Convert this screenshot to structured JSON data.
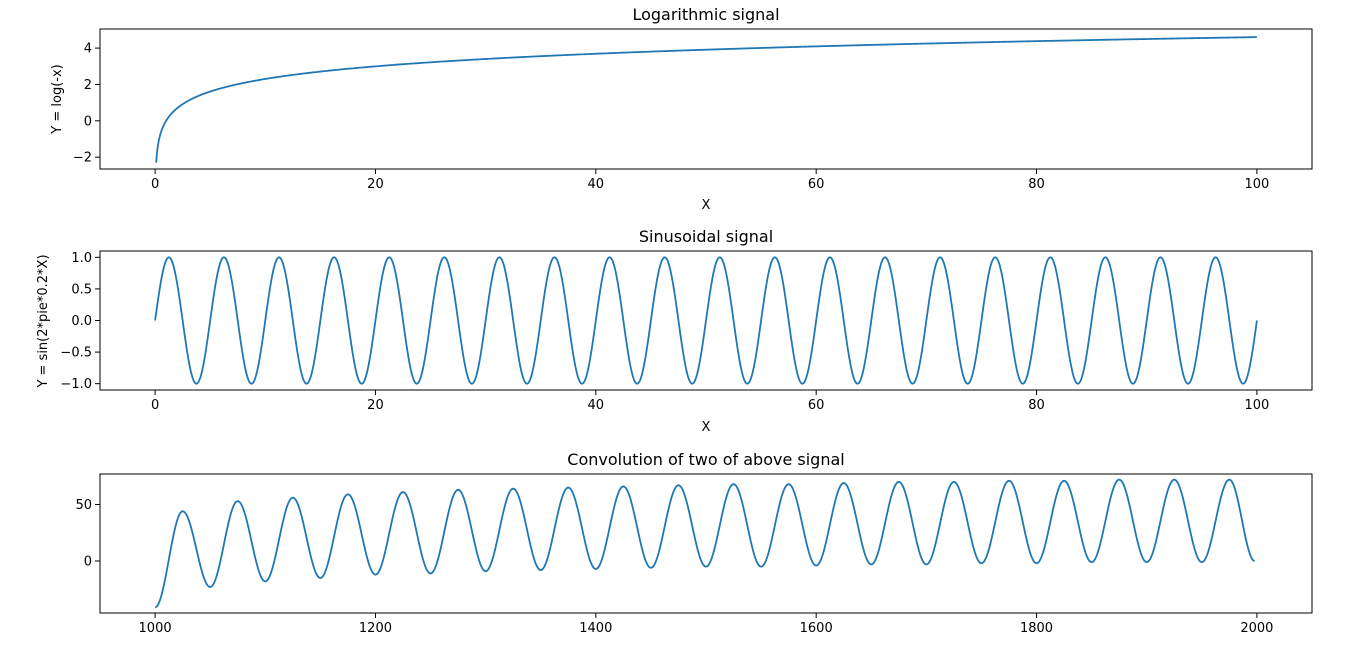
{
  "chart_data": [
    {
      "type": "line",
      "title": "Logarithmic signal",
      "xlabel": "X",
      "ylabel": "Y = log(-x)",
      "xlim": [
        -5,
        105
      ],
      "ylim": [
        -2.65,
        5.05
      ],
      "xticks": [
        0,
        20,
        40,
        60,
        80,
        100
      ],
      "xtick_labels": [
        "0",
        "20",
        "40",
        "60",
        "80",
        "100"
      ],
      "yticks": [
        -2,
        0,
        2,
        4
      ],
      "ytick_labels": [
        "−2",
        "0",
        "2",
        "4"
      ],
      "series": [
        {
          "color": "#1f77b4",
          "x": [
            0.1,
            0.2,
            0.3,
            0.5,
            0.75,
            1,
            1.5,
            2,
            3,
            4,
            5,
            6,
            8,
            10,
            12,
            15,
            20,
            25,
            30,
            35,
            40,
            45,
            50,
            55,
            60,
            65,
            70,
            75,
            80,
            85,
            90,
            95,
            100
          ],
          "y": [
            -2.303,
            -1.609,
            -1.204,
            -0.693,
            -0.288,
            0,
            0.405,
            0.693,
            1.099,
            1.386,
            1.609,
            1.792,
            2.079,
            2.303,
            2.485,
            2.708,
            2.996,
            3.219,
            3.401,
            3.555,
            3.689,
            3.807,
            3.912,
            4.007,
            4.094,
            4.174,
            4.248,
            4.317,
            4.382,
            4.443,
            4.5,
            4.554,
            4.605
          ]
        }
      ]
    },
    {
      "type": "line",
      "title": "Sinusoidal signal",
      "xlabel": "X",
      "ylabel": "Y = sin(2*pie*0.2*X)",
      "xlim": [
        -5,
        105
      ],
      "ylim": [
        -1.1,
        1.1
      ],
      "xticks": [
        0,
        20,
        40,
        60,
        80,
        100
      ],
      "xtick_labels": [
        "0",
        "20",
        "40",
        "60",
        "80",
        "100"
      ],
      "yticks": [
        -1.0,
        -0.5,
        0.0,
        0.5,
        1.0
      ],
      "ytick_labels": [
        "−1.0",
        "−0.5",
        "0.0",
        "0.5",
        "1.0"
      ],
      "series": [
        {
          "color": "#1f77b4",
          "function": "sin",
          "amplitude": 1,
          "frequency": 0.2,
          "x_range": [
            0,
            100
          ]
        }
      ]
    },
    {
      "type": "line",
      "title": "Convolution of two of above signal",
      "xlabel": "",
      "ylabel": "",
      "xlim": [
        950,
        2050
      ],
      "ylim": [
        -46,
        77
      ],
      "xticks": [
        1000,
        1200,
        1400,
        1600,
        1800,
        2000
      ],
      "xtick_labels": [
        "1000",
        "1200",
        "1400",
        "1600",
        "1800",
        "2000"
      ],
      "yticks": [
        0,
        50
      ],
      "ytick_labels": [
        "0",
        "50"
      ],
      "series": [
        {
          "color": "#1f77b4",
          "description_period": 50,
          "x_range": [
            1000,
            1998
          ],
          "start_value": -41,
          "end_value": 0,
          "peaks": [
            {
              "x": 1025,
              "y": 44
            },
            {
              "x": 1075,
              "y": 53
            },
            {
              "x": 1125,
              "y": 56
            },
            {
              "x": 1175,
              "y": 59
            },
            {
              "x": 1225,
              "y": 61
            },
            {
              "x": 1275,
              "y": 63
            },
            {
              "x": 1325,
              "y": 64
            },
            {
              "x": 1375,
              "y": 65
            },
            {
              "x": 1425,
              "y": 66
            },
            {
              "x": 1475,
              "y": 67
            },
            {
              "x": 1525,
              "y": 68
            },
            {
              "x": 1575,
              "y": 68
            },
            {
              "x": 1625,
              "y": 69
            },
            {
              "x": 1675,
              "y": 70
            },
            {
              "x": 1725,
              "y": 70
            },
            {
              "x": 1775,
              "y": 71
            },
            {
              "x": 1825,
              "y": 71
            },
            {
              "x": 1875,
              "y": 72
            },
            {
              "x": 1925,
              "y": 72
            },
            {
              "x": 1975,
              "y": 72
            }
          ],
          "troughs": [
            {
              "x": 1050,
              "y": -23
            },
            {
              "x": 1100,
              "y": -18
            },
            {
              "x": 1150,
              "y": -15
            },
            {
              "x": 1200,
              "y": -12
            },
            {
              "x": 1250,
              "y": -11
            },
            {
              "x": 1300,
              "y": -9
            },
            {
              "x": 1350,
              "y": -8
            },
            {
              "x": 1400,
              "y": -7
            },
            {
              "x": 1450,
              "y": -6
            },
            {
              "x": 1500,
              "y": -5
            },
            {
              "x": 1550,
              "y": -5
            },
            {
              "x": 1600,
              "y": -4
            },
            {
              "x": 1650,
              "y": -3
            },
            {
              "x": 1700,
              "y": -3
            },
            {
              "x": 1750,
              "y": -2
            },
            {
              "x": 1800,
              "y": -2
            },
            {
              "x": 1850,
              "y": -1
            },
            {
              "x": 1900,
              "y": -1
            },
            {
              "x": 1950,
              "y": -1
            }
          ]
        }
      ]
    }
  ]
}
